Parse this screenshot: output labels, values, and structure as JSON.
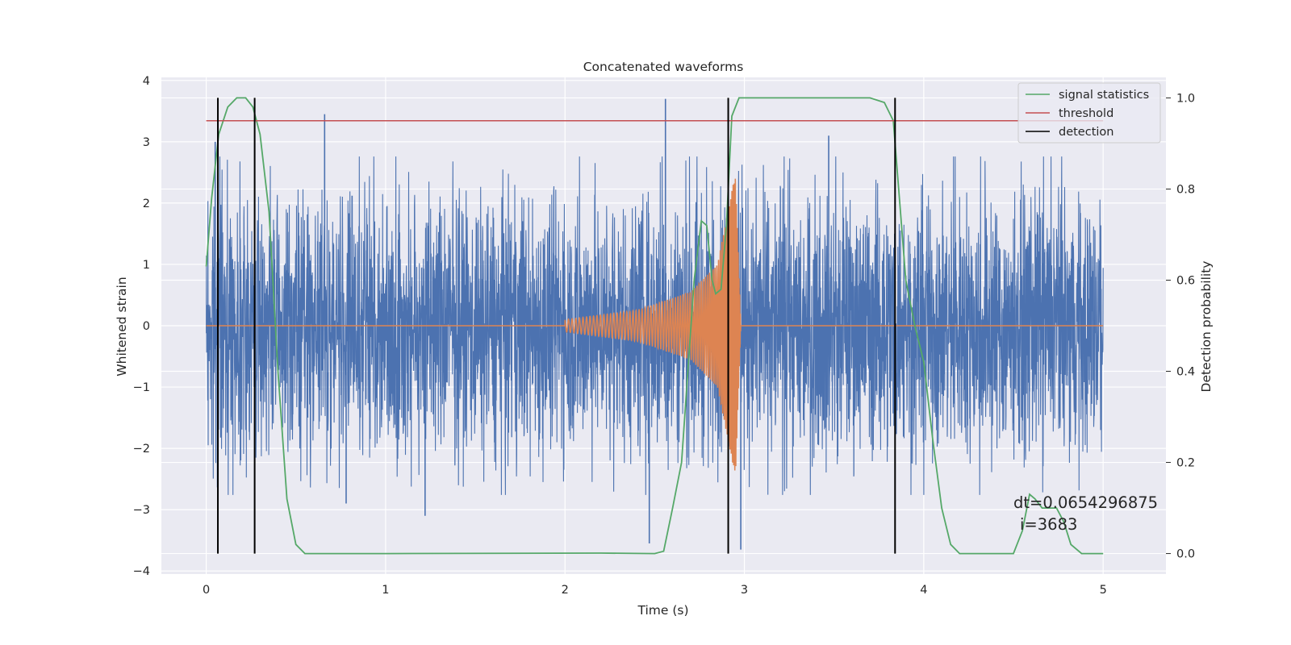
{
  "chart_data": {
    "type": "line",
    "title": "Concatenated waveforms",
    "xlabel": "Time (s)",
    "ylabel": "Whitened strain",
    "y2label": "Detection probability",
    "xlim": [
      -0.25,
      5.35
    ],
    "ylim": [
      -4.05,
      4.05
    ],
    "y2lim": [
      -0.045,
      1.045
    ],
    "xticks": [
      0,
      1,
      2,
      3,
      4,
      5
    ],
    "yticks": [
      -4,
      -3,
      -2,
      -1,
      0,
      1,
      2,
      3,
      4
    ],
    "y2ticks": [
      0.0,
      0.2,
      0.4,
      0.6,
      0.8,
      1.0
    ],
    "grid": true,
    "legend_position": "top-right",
    "series": [
      {
        "color": "#4c72b0",
        "axis": "left",
        "kind": "noise",
        "x_range": [
          0,
          5
        ],
        "amplitude_envelope": 2.3,
        "peaks": [
          {
            "x": 0.05,
            "y": 3.0
          },
          {
            "x": 0.66,
            "y": 3.45
          },
          {
            "x": 2.56,
            "y": 3.7
          },
          {
            "x": 0.78,
            "y": -2.9
          },
          {
            "x": 1.22,
            "y": -3.1
          },
          {
            "x": 2.47,
            "y": -3.55
          },
          {
            "x": 2.98,
            "y": -3.65
          },
          {
            "x": 3.47,
            "y": 3.1
          }
        ]
      },
      {
        "color": "#dd8452",
        "axis": "left",
        "kind": "chirp",
        "x_range": [
          0,
          5
        ],
        "chirp_start": 2.0,
        "chirp_end": 2.98,
        "points": [
          [
            0,
            0
          ],
          [
            2.0,
            0.1
          ],
          [
            2.4,
            0.25
          ],
          [
            2.7,
            0.55
          ],
          [
            2.85,
            1.0
          ],
          [
            2.95,
            2.5
          ],
          [
            2.98,
            0
          ],
          [
            5,
            0
          ]
        ]
      },
      {
        "name": "signal statistics",
        "color": "#55a868",
        "axis": "right",
        "points": [
          [
            0.0,
            0.63
          ],
          [
            0.03,
            0.78
          ],
          [
            0.07,
            0.92
          ],
          [
            0.12,
            0.98
          ],
          [
            0.17,
            1.0
          ],
          [
            0.22,
            1.0
          ],
          [
            0.26,
            0.98
          ],
          [
            0.3,
            0.92
          ],
          [
            0.35,
            0.75
          ],
          [
            0.4,
            0.4
          ],
          [
            0.45,
            0.12
          ],
          [
            0.5,
            0.02
          ],
          [
            0.55,
            0.0
          ],
          [
            1.0,
            0.0
          ],
          [
            2.2,
            0.001
          ],
          [
            2.5,
            0.0
          ],
          [
            2.55,
            0.005
          ],
          [
            2.6,
            0.1
          ],
          [
            2.65,
            0.2
          ],
          [
            2.72,
            0.6
          ],
          [
            2.76,
            0.73
          ],
          [
            2.79,
            0.72
          ],
          [
            2.82,
            0.6
          ],
          [
            2.84,
            0.57
          ],
          [
            2.87,
            0.58
          ],
          [
            2.9,
            0.72
          ],
          [
            2.93,
            0.96
          ],
          [
            2.97,
            1.0
          ],
          [
            3.7,
            1.0
          ],
          [
            3.78,
            0.99
          ],
          [
            3.83,
            0.95
          ],
          [
            3.87,
            0.75
          ],
          [
            3.9,
            0.6
          ],
          [
            3.95,
            0.5
          ],
          [
            4.0,
            0.42
          ],
          [
            4.05,
            0.25
          ],
          [
            4.1,
            0.1
          ],
          [
            4.15,
            0.02
          ],
          [
            4.2,
            0.0
          ],
          [
            4.5,
            0.0
          ],
          [
            4.55,
            0.05
          ],
          [
            4.59,
            0.13
          ],
          [
            4.62,
            0.12
          ],
          [
            4.66,
            0.1
          ],
          [
            4.7,
            0.1
          ],
          [
            4.74,
            0.1
          ],
          [
            4.78,
            0.07
          ],
          [
            4.82,
            0.02
          ],
          [
            4.88,
            0.0
          ],
          [
            5.0,
            0.0
          ]
        ]
      },
      {
        "name": "threshold",
        "color": "#c44e52",
        "axis": "right",
        "value": 0.95,
        "x_range": [
          0,
          5
        ]
      },
      {
        "name": "detection",
        "color": "#000000",
        "axis": "right",
        "x": [
          0.065,
          0.27,
          2.91,
          3.84
        ],
        "y_range": [
          0,
          1
        ]
      }
    ],
    "annotation": {
      "line1": "dt=0.0654296875",
      "line2": "i=3683",
      "x": 4.5,
      "y": -2.95
    }
  }
}
